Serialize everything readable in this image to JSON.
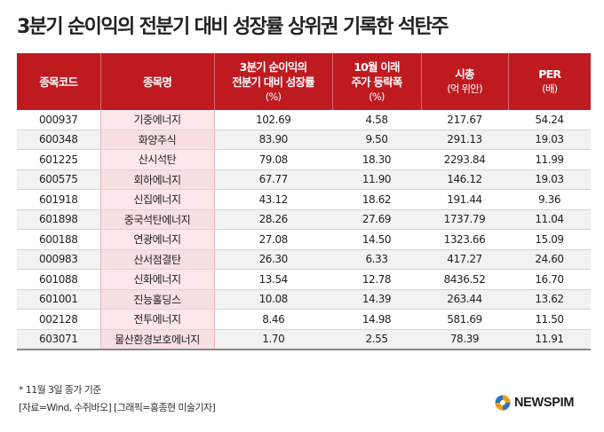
{
  "title": "3분기 순이익의 전분기 대비 성장률 상위권 기록한 석탄주",
  "headers": [
    {
      "line1": "종목코드",
      "line2": "",
      "sub": ""
    },
    {
      "line1": "종목명",
      "line2": "",
      "sub": ""
    },
    {
      "line1": "3분기 순이익의",
      "line2": "전분기 대비 성장률",
      "sub": "(%)"
    },
    {
      "line1": "10월 이래",
      "line2": "주가 등락폭",
      "sub": "(%)"
    },
    {
      "line1": "시총",
      "line2": "",
      "sub": "(억 위안)"
    },
    {
      "line1": "PER",
      "line2": "",
      "sub": "(배)"
    }
  ],
  "rows": [
    {
      "code": "000937",
      "name": "기중에너지",
      "growth": "102.69",
      "change": "4.58",
      "mcap": "217.67",
      "per": "54.24"
    },
    {
      "code": "600348",
      "name": "화양주식",
      "growth": "83.90",
      "change": "9.50",
      "mcap": "291.13",
      "per": "19.03"
    },
    {
      "code": "601225",
      "name": "산시석탄",
      "growth": "79.08",
      "change": "18.30",
      "mcap": "2293.84",
      "per": "11.99"
    },
    {
      "code": "600575",
      "name": "회하에너지",
      "growth": "67.77",
      "change": "11.90",
      "mcap": "146.12",
      "per": "19.03"
    },
    {
      "code": "601918",
      "name": "신집에너지",
      "growth": "43.12",
      "change": "18.62",
      "mcap": "191.44",
      "per": "9.36"
    },
    {
      "code": "601898",
      "name": "중국석탄에너지",
      "growth": "28.26",
      "change": "27.69",
      "mcap": "1737.79",
      "per": "11.04"
    },
    {
      "code": "600188",
      "name": "연광에너지",
      "growth": "27.08",
      "change": "14.50",
      "mcap": "1323.66",
      "per": "15.09"
    },
    {
      "code": "000983",
      "name": "산서점결탄",
      "growth": "26.30",
      "change": "6.33",
      "mcap": "417.27",
      "per": "24.60"
    },
    {
      "code": "601088",
      "name": "신화에너지",
      "growth": "13.54",
      "change": "12.78",
      "mcap": "8436.52",
      "per": "16.70"
    },
    {
      "code": "601001",
      "name": "진능홀딩스",
      "growth": "10.08",
      "change": "14.39",
      "mcap": "263.44",
      "per": "13.62"
    },
    {
      "code": "002128",
      "name": "전투에너지",
      "growth": "8.46",
      "change": "14.98",
      "mcap": "581.69",
      "per": "11.50"
    },
    {
      "code": "603071",
      "name": "물산환경보호에너지",
      "growth": "1.70",
      "change": "2.55",
      "mcap": "78.39",
      "per": "11.91"
    }
  ],
  "footnote": "* 11월 3일 종가 기준",
  "source": "[자료=Wind, 수쥐바오] [그래픽=홍종현 미술기자]",
  "logo": {
    "text": "NEWSPIM",
    "icon": "newspim-logo-icon"
  },
  "colors": {
    "header_bg": "#c01a21",
    "name_col_bg": "#fde7ea",
    "stripe_bg": "#f2f2f2"
  }
}
